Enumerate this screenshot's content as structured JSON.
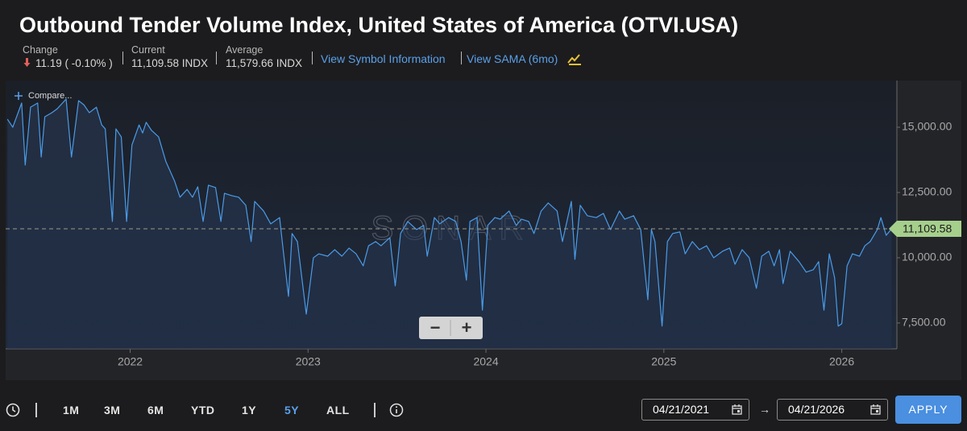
{
  "header": {
    "title": "Outbound Tender Volume Index, United States of America (OTVI.USA)",
    "stats": [
      {
        "label": "Change",
        "value": "11.19 ( -0.10% )"
      },
      {
        "label": "Current",
        "value": "11,109.58 INDX"
      },
      {
        "label": "Average",
        "value": "11,579.66 INDX"
      }
    ],
    "links": [
      "View Symbol Information",
      "View SAMA (6mo)"
    ]
  },
  "compare_button": "Compare...",
  "watermark": "SONAR",
  "zoom_buttons": [
    "−",
    "+"
  ],
  "chart_data": {
    "type": "line",
    "color": "#4a9be8",
    "x": [
      2021.31,
      2021.34,
      2021.39,
      2021.41,
      2021.44,
      2021.48,
      2021.5,
      2021.52,
      2021.56,
      2021.59,
      2021.64,
      2021.67,
      2021.71,
      2021.74,
      2021.77,
      2021.81,
      2021.84,
      2021.86,
      2021.9,
      2021.92,
      2021.95,
      2021.98,
      2022.01,
      2022.05,
      2022.07,
      2022.09,
      2022.12,
      2022.16,
      2022.2,
      2022.25,
      2022.28,
      2022.32,
      2022.35,
      2022.38,
      2022.41,
      2022.44,
      2022.48,
      2022.51,
      2022.53,
      2022.57,
      2022.61,
      2022.65,
      2022.68,
      2022.7,
      2022.75,
      2022.79,
      2022.84,
      2022.86,
      2022.89,
      2022.91,
      2022.94,
      2022.99,
      2023.03,
      2023.06,
      2023.11,
      2023.15,
      2023.19,
      2023.23,
      2023.27,
      2023.31,
      2023.34,
      2023.38,
      2023.41,
      2023.46,
      2023.49,
      2023.52,
      2023.56,
      2023.61,
      2023.65,
      2023.67,
      2023.71,
      2023.74,
      2023.79,
      2023.83,
      2023.86,
      2023.89,
      2023.91,
      2023.95,
      2023.98,
      2024.01,
      2024.05,
      2024.08,
      2024.13,
      2024.17,
      2024.2,
      2024.24,
      2024.27,
      2024.31,
      2024.35,
      2024.4,
      2024.43,
      2024.48,
      2024.5,
      2024.53,
      2024.57,
      2024.62,
      2024.66,
      2024.7,
      2024.75,
      2024.78,
      2024.83,
      2024.87,
      2024.91,
      2024.93,
      2024.95,
      2024.99,
      2025.02,
      2025.05,
      2025.09,
      2025.12,
      2025.16,
      2025.2,
      2025.24,
      2025.28,
      2025.33,
      2025.37,
      2025.4,
      2025.44,
      2025.48,
      2025.52,
      2025.55,
      2025.59,
      2025.62,
      2025.65,
      2025.67,
      2025.71,
      2025.76,
      2025.8,
      2025.84,
      2025.87,
      2025.9,
      2025.93,
      2025.96,
      2025.98,
      2026.0,
      2026.03,
      2026.06,
      2026.1,
      2026.13,
      2026.16,
      2026.2,
      2026.22,
      2026.25,
      2026.28
    ],
    "values": [
      15310,
      15000,
      15930,
      13550,
      15770,
      15930,
      13860,
      15400,
      15560,
      15710,
      16080,
      13860,
      16020,
      15860,
      15560,
      15770,
      15090,
      14940,
      11390,
      14940,
      14630,
      11390,
      14320,
      15090,
      14780,
      15190,
      14880,
      14630,
      13700,
      12930,
      12320,
      12620,
      12320,
      12720,
      11390,
      12780,
      12690,
      11390,
      12470,
      12380,
      12320,
      12010,
      10620,
      12160,
      11790,
      11300,
      11540,
      10310,
      8520,
      10930,
      10620,
      7840,
      10000,
      10150,
      10060,
      10310,
      10060,
      10370,
      10150,
      9690,
      10460,
      10620,
      10460,
      10770,
      8920,
      10930,
      11390,
      11080,
      11240,
      10060,
      11540,
      11300,
      11540,
      11390,
      10620,
      9140,
      11390,
      11540,
      7990,
      11240,
      11540,
      11480,
      11790,
      11240,
      11480,
      11390,
      10930,
      11790,
      12100,
      11790,
      10620,
      12160,
      9940,
      12010,
      11610,
      11540,
      11700,
      11080,
      11790,
      11480,
      11610,
      11080,
      8390,
      11080,
      10620,
      7380,
      10620,
      10930,
      10990,
      10150,
      10620,
      10310,
      10460,
      10000,
      10250,
      10370,
      9750,
      10310,
      10000,
      8830,
      10060,
      10250,
      9690,
      10310,
      9010,
      10250,
      9850,
      9450,
      9540,
      9850,
      7990,
      10150,
      9230,
      7380,
      7470,
      9690,
      10150,
      10060,
      10460,
      10620,
      11080,
      11540,
      10860,
      11109.58
    ],
    "xlim": [
      2021.3,
      2026.31
    ],
    "xticks": [
      2022,
      2023,
      2024,
      2025,
      2026
    ],
    "ylim": [
      6510,
      16790
    ],
    "yticks": [
      {
        "value": 7500,
        "label": "7,500.00"
      },
      {
        "value": 10000,
        "label": "10,000.00"
      },
      {
        "value": 12500,
        "label": "12,500.00"
      },
      {
        "value": 15000,
        "label": "15,000.00"
      }
    ],
    "reference_line": {
      "value": 11109.58,
      "label": "11,109.58",
      "color": "#a6cf8c"
    },
    "grid": false
  },
  "toolbar": {
    "ranges": [
      "1M",
      "3M",
      "6M",
      "YTD",
      "1Y",
      "5Y",
      "ALL"
    ],
    "active_range": "5Y",
    "date_range": {
      "start": "04/21/2021",
      "arrow": "→",
      "end": "04/21/2026"
    },
    "apply": "APPLY"
  }
}
